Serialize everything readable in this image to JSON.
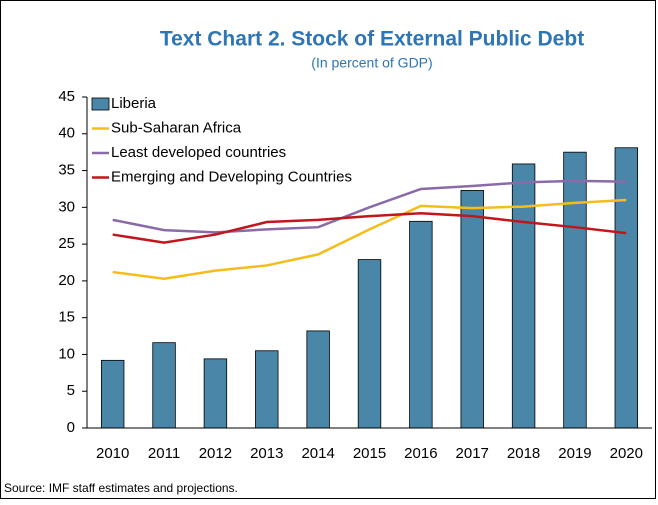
{
  "chart_data": {
    "type": "bar-line",
    "title": "Text Chart 2. Stock of External Public Debt",
    "subtitle": "(In percent of GDP)",
    "source": "Source: IMF staff estimates and projections.",
    "categories": [
      "2010",
      "2011",
      "2012",
      "2013",
      "2014",
      "2015",
      "2016",
      "2017",
      "2018",
      "2019",
      "2020"
    ],
    "series": [
      {
        "name": "Liberia",
        "kind": "bar",
        "color": "#4a86a8",
        "values": [
          9.2,
          11.6,
          9.4,
          10.5,
          13.2,
          22.9,
          28.1,
          32.3,
          35.9,
          37.5,
          38.1
        ]
      },
      {
        "name": "Sub-Saharan Africa",
        "kind": "line",
        "color": "#f5bd1a",
        "values": [
          21.2,
          20.3,
          21.4,
          22.1,
          23.6,
          27.0,
          30.2,
          29.9,
          30.1,
          30.6,
          31.0
        ]
      },
      {
        "name": "Least developed countries",
        "kind": "line",
        "color": "#8a6aa8",
        "values": [
          28.3,
          26.9,
          26.6,
          27.0,
          27.3,
          30.0,
          32.5,
          32.9,
          33.4,
          33.6,
          33.5
        ]
      },
      {
        "name": "Emerging and Developing Countries",
        "kind": "line",
        "color": "#c0161c",
        "values": [
          26.3,
          25.2,
          26.3,
          28.0,
          28.3,
          28.8,
          29.2,
          28.8,
          28.0,
          27.3,
          26.5
        ]
      }
    ],
    "ylim": [
      0,
      45
    ],
    "yticks": [
      0,
      5,
      10,
      15,
      20,
      25,
      30,
      35,
      40,
      45
    ],
    "legend": "top-left"
  }
}
